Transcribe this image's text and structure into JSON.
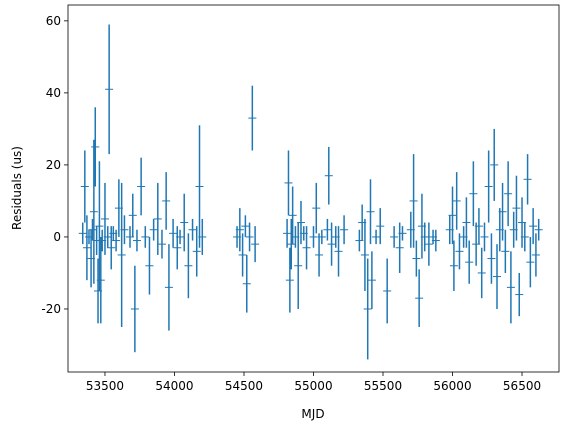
{
  "chart_data": {
    "type": "errorbar",
    "xlabel": "MJD",
    "ylabel": "Residuals (us)",
    "color": "#1f77b4",
    "xlim": [
      53234,
      56766
    ],
    "ylim": [
      -37.5,
      64.4
    ],
    "xticks": [
      53500,
      54000,
      54500,
      55000,
      55500,
      56000,
      56500
    ],
    "yticks": [
      -20,
      0,
      20,
      40,
      60
    ],
    "x": [
      53340,
      53355,
      53370,
      53385,
      53400,
      53410,
      53420,
      53430,
      53440,
      53450,
      53460,
      53470,
      53480,
      53500,
      53520,
      53530,
      53545,
      53560,
      53580,
      53600,
      53620,
      53640,
      53680,
      53700,
      53715,
      53730,
      53760,
      53790,
      53820,
      53850,
      53880,
      53910,
      53940,
      53960,
      53990,
      54020,
      54040,
      54070,
      54100,
      54130,
      54160,
      54180,
      54200,
      54450,
      54470,
      54490,
      54510,
      54520,
      54540,
      54560,
      54580,
      54810,
      54820,
      54830,
      54840,
      54850,
      54870,
      54890,
      54910,
      54930,
      54950,
      55000,
      55020,
      55040,
      55060,
      55100,
      55110,
      55130,
      55160,
      55180,
      55220,
      55330,
      55350,
      55370,
      55390,
      55410,
      55420,
      55450,
      55480,
      55530,
      55580,
      55620,
      55640,
      55700,
      55720,
      55740,
      55760,
      55780,
      55800,
      55830,
      55860,
      55880,
      55980,
      56000,
      56010,
      56030,
      56050,
      56080,
      56100,
      56120,
      56150,
      56170,
      56190,
      56210,
      56230,
      56260,
      56280,
      56300,
      56320,
      56340,
      56360,
      56380,
      56400,
      56420,
      56440,
      56460,
      56480,
      56500,
      56520,
      56540,
      56560,
      56580,
      56600,
      56620
    ],
    "values": [
      1,
      14,
      -3,
      0,
      -6,
      2,
      7,
      25,
      -1,
      -15,
      3,
      -12,
      -1,
      5,
      0,
      41,
      -3,
      1,
      -1,
      8,
      -5,
      2,
      0,
      6,
      -20,
      -1,
      14,
      0,
      -8,
      2,
      5,
      -2,
      10,
      -14,
      1,
      -3,
      0,
      4,
      -8,
      2,
      -4,
      14,
      0,
      0,
      2,
      -5,
      3,
      -13,
      0,
      33,
      -2,
      1,
      15,
      -12,
      -2,
      6,
      0,
      -8,
      4,
      1,
      -3,
      0,
      8,
      -5,
      0,
      2,
      17,
      -2,
      0,
      -4,
      2,
      -1,
      4,
      -5,
      -20,
      7,
      -12,
      0,
      3,
      -15,
      0,
      -3,
      1,
      2,
      10,
      -6,
      -17,
      3,
      0,
      -2,
      0,
      -1,
      2,
      6,
      -8,
      10,
      -4,
      0,
      4,
      -7,
      12,
      -2,
      3,
      -10,
      0,
      14,
      -6,
      20,
      -11,
      2,
      7,
      -4,
      12,
      -14,
      2,
      8,
      -16,
      4,
      0,
      16,
      -7,
      3,
      -5,
      2
    ],
    "errors": [
      3,
      10,
      9,
      2,
      8,
      3,
      20,
      11,
      4,
      9,
      18,
      12,
      3,
      10,
      3,
      18,
      6,
      2,
      3,
      8,
      20,
      4,
      3,
      6,
      12,
      3,
      8,
      3,
      8,
      3,
      10,
      4,
      8,
      12,
      4,
      6,
      2,
      8,
      9,
      3,
      7,
      17,
      5,
      3,
      6,
      6,
      3,
      8,
      4,
      9,
      5,
      4,
      9,
      9,
      7,
      8,
      3,
      12,
      6,
      2,
      6,
      3,
      7,
      6,
      2,
      3,
      8,
      6,
      3,
      7,
      4,
      3,
      5,
      10,
      14,
      9,
      8,
      2,
      5,
      9,
      3,
      7,
      2,
      5,
      13,
      5,
      8,
      9,
      4,
      6,
      2,
      3,
      4,
      8,
      7,
      8,
      5,
      3,
      7,
      6,
      9,
      6,
      5,
      7,
      4,
      10,
      7,
      10,
      9,
      6,
      8,
      6,
      9,
      10,
      5,
      9,
      6,
      7,
      4,
      7,
      7,
      5,
      6,
      3
    ]
  }
}
